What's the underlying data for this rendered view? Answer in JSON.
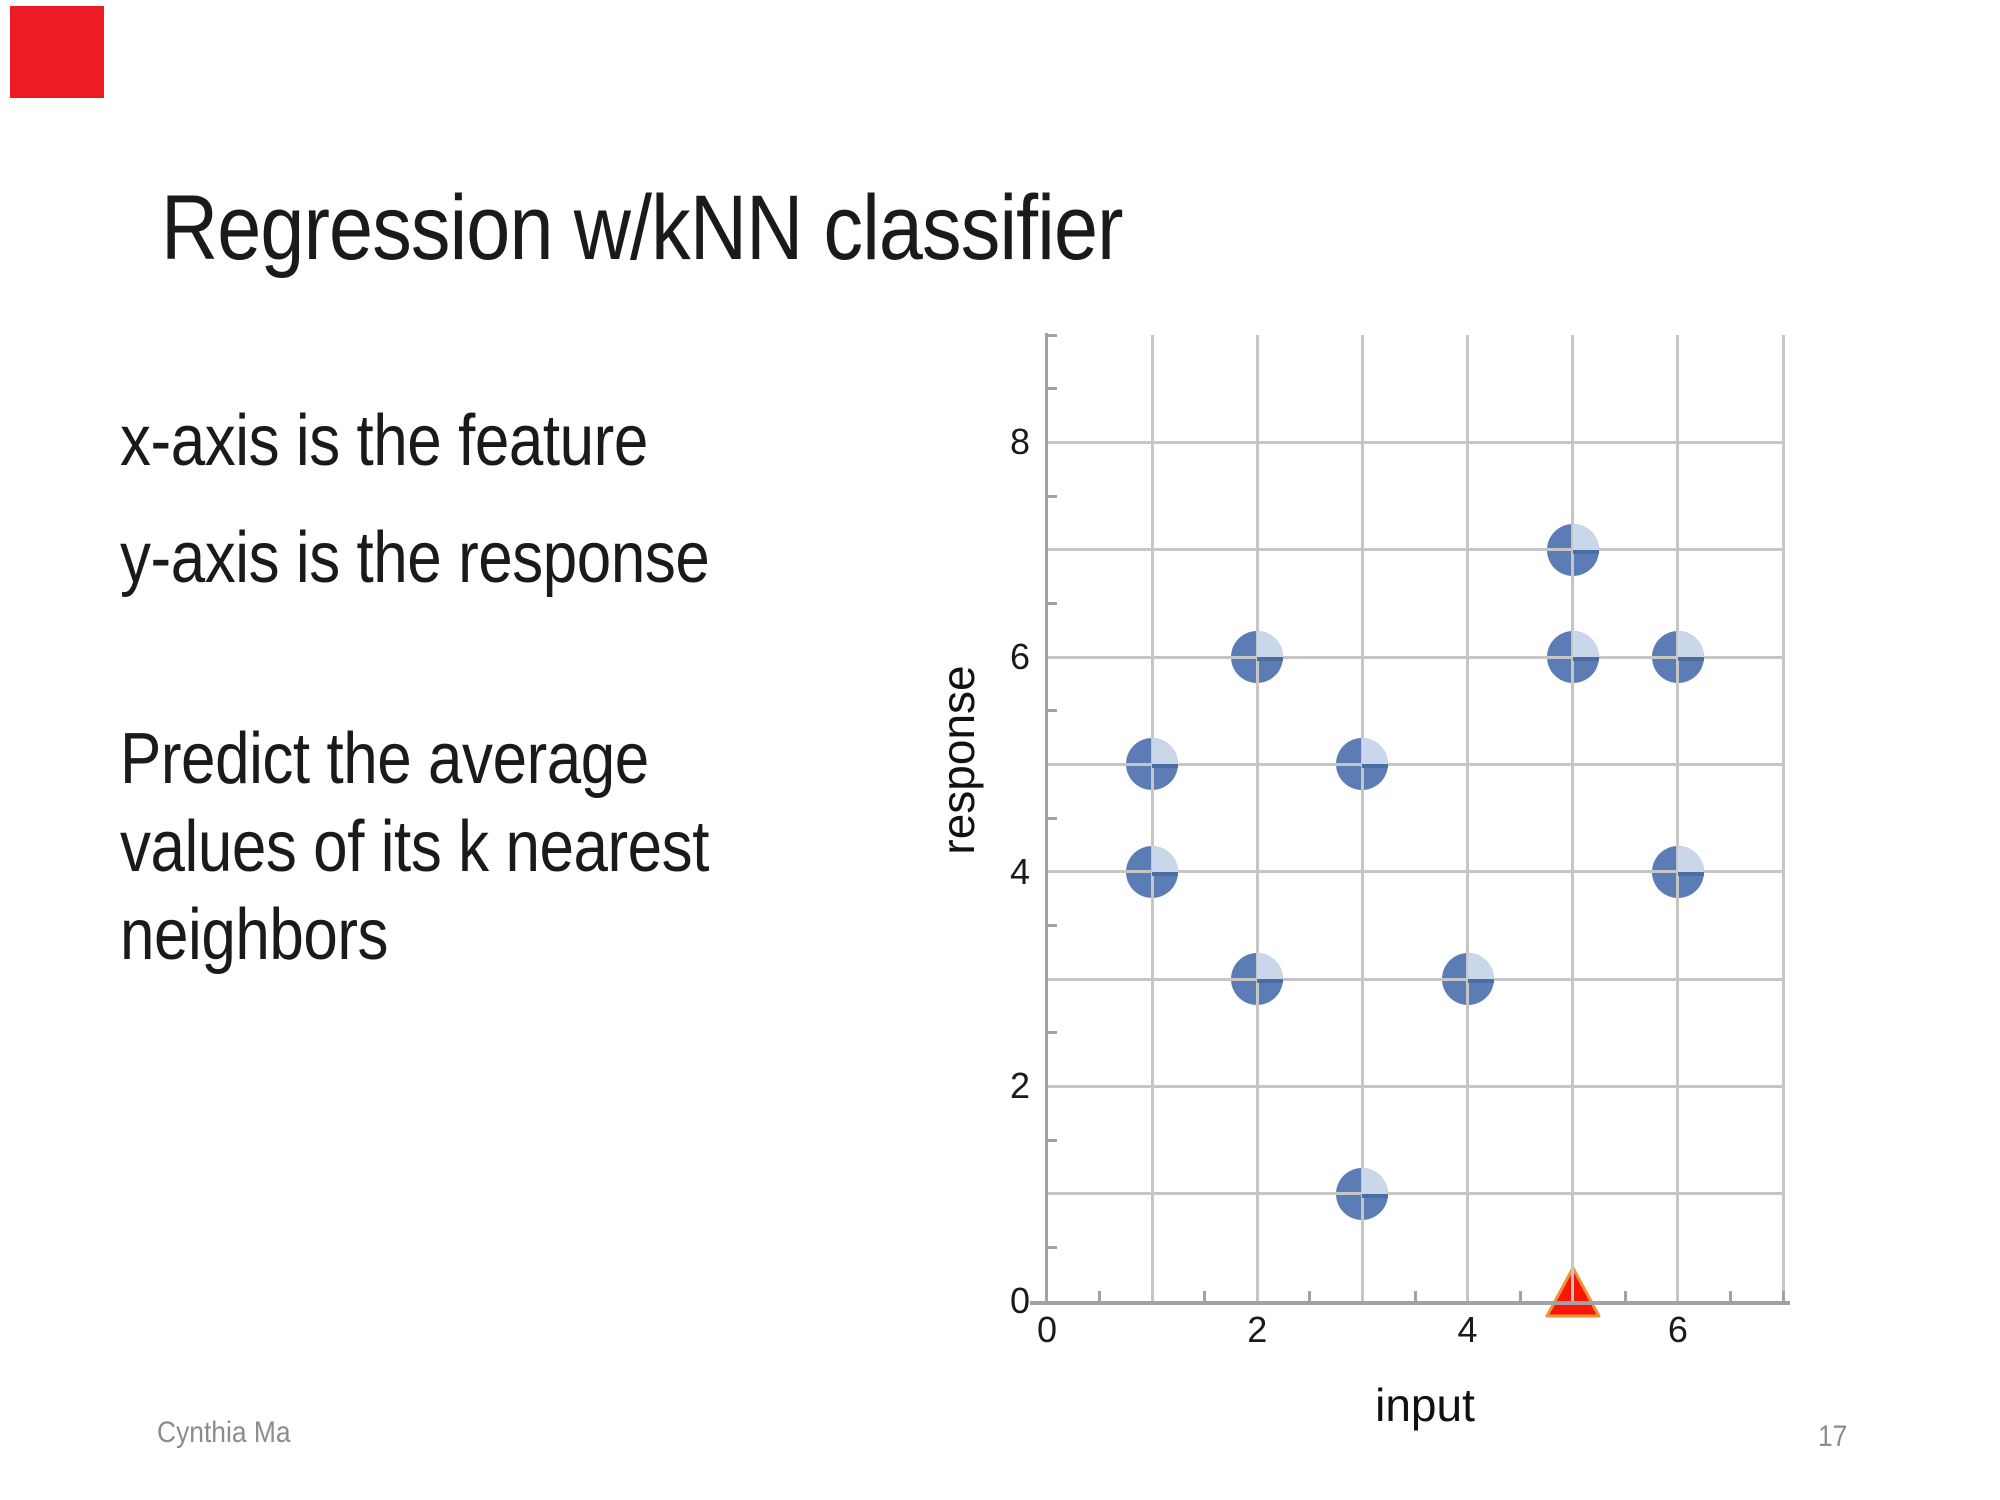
{
  "slide": {
    "title": "Regression w/kNN classifier",
    "bullets": [
      "x-axis is the feature",
      "y-axis is the response"
    ],
    "predict_lines": [
      "Predict the average",
      "values of its k nearest",
      "neighbors"
    ],
    "footer": {
      "author": "Cynthia Ma",
      "page": "17"
    },
    "accent_square_color": "#ED1C24"
  },
  "chart_data": {
    "type": "scatter",
    "points": [
      [
        1,
        5
      ],
      [
        1,
        4
      ],
      [
        2,
        6
      ],
      [
        2,
        3
      ],
      [
        3,
        5
      ],
      [
        3,
        1
      ],
      [
        4,
        3
      ],
      [
        5,
        7
      ],
      [
        5,
        6
      ],
      [
        6,
        6
      ],
      [
        6,
        4
      ]
    ],
    "query_point": {
      "x": 5,
      "y": 0,
      "marker": "red-triangle"
    },
    "xlabel": "input",
    "ylabel": "response",
    "xlim": [
      0,
      7
    ],
    "ylim": [
      0,
      9
    ],
    "x_tick_labels": [
      0,
      2,
      4,
      6
    ],
    "y_tick_labels": [
      0,
      2,
      4,
      6,
      8
    ],
    "gridline_step": 1,
    "minor_tick_step": 0.5,
    "grid": true,
    "legend": "none",
    "colors": {
      "point_fill": "#5B7CB4",
      "point_quadrant": "#CAD7EB",
      "point_chord": "#4A6DA3",
      "gridline": "#C6C6C6",
      "axis": "#A2A2A2",
      "triangle_fill": "#FA1505",
      "triangle_stroke": "#F0913D",
      "label": "#1A1A1A"
    }
  }
}
